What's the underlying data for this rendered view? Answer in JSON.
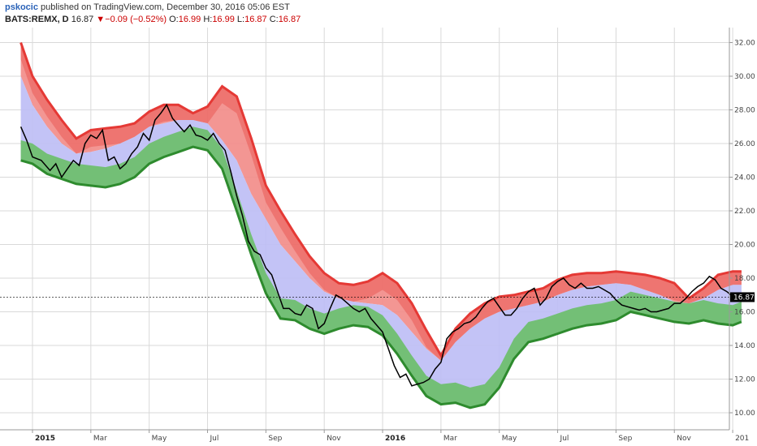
{
  "header": {
    "author": "pskocic",
    "published_text": "published on TradingView.com, December 30, 2016 05:06 EST",
    "symbol": "BATS:REMX, D",
    "last": "16.87",
    "change_arrow": "▼",
    "change": "−0.09 (−0.52%)",
    "o_label": "O:",
    "o": "16.99",
    "h_label": "H:",
    "h": "16.99",
    "l_label": "L:",
    "l": "16.87",
    "c_label": "C:",
    "c": "16.87"
  },
  "colors": {
    "price": "#000000",
    "upper_band": "#e53935",
    "upper_fill": "#f28b87",
    "middle_fill": "#bcbcf5",
    "lower_band": "#2e8b2e",
    "lower_fill": "#6fbf6f",
    "grid": "#d9d9d9",
    "last_label_bg": "#000000"
  },
  "chart_data": {
    "type": "line",
    "ylim": [
      9.4,
      33.2
    ],
    "y_ticks": [
      "10.00",
      "12.00",
      "14.00",
      "16.00",
      "18.00",
      "20.00",
      "22.00",
      "24.00",
      "26.00",
      "28.00",
      "30.00",
      "32.00"
    ],
    "x_ticks": [
      {
        "label": "2015",
        "t": 0,
        "bold": true
      },
      {
        "label": "Mar",
        "t": 2,
        "bold": false
      },
      {
        "label": "May",
        "t": 4,
        "bold": false
      },
      {
        "label": "Jul",
        "t": 6,
        "bold": false
      },
      {
        "label": "Sep",
        "t": 8,
        "bold": false
      },
      {
        "label": "Nov",
        "t": 10,
        "bold": false
      },
      {
        "label": "2016",
        "t": 12,
        "bold": true
      },
      {
        "label": "Mar",
        "t": 14,
        "bold": false
      },
      {
        "label": "May",
        "t": 16,
        "bold": false
      },
      {
        "label": "Jul",
        "t": 18,
        "bold": false
      },
      {
        "label": "Sep",
        "t": 20,
        "bold": false
      },
      {
        "label": "Nov",
        "t": 22,
        "bold": false
      },
      {
        "label": "201",
        "t": 24,
        "bold": false
      }
    ],
    "last_value": "16.87",
    "series": [
      {
        "role": "upper",
        "points": [
          [
            -0.4,
            32
          ],
          [
            0,
            30
          ],
          [
            0.5,
            28.6
          ],
          [
            1,
            27.4
          ],
          [
            1.5,
            26.3
          ],
          [
            2,
            26.8
          ],
          [
            2.5,
            26.9
          ],
          [
            3,
            27
          ],
          [
            3.5,
            27.2
          ],
          [
            4,
            27.9
          ],
          [
            4.5,
            28.3
          ],
          [
            5,
            28.3
          ],
          [
            5.5,
            27.8
          ],
          [
            6,
            28.2
          ],
          [
            6.5,
            29.4
          ],
          [
            7,
            28.8
          ],
          [
            7.5,
            26.3
          ],
          [
            8,
            23.5
          ],
          [
            8.5,
            22
          ],
          [
            9,
            20.6
          ],
          [
            9.5,
            19.3
          ],
          [
            10,
            18.3
          ],
          [
            10.5,
            17.7
          ],
          [
            11,
            17.6
          ],
          [
            11.5,
            17.8
          ],
          [
            12,
            18.3
          ],
          [
            12.5,
            17.7
          ],
          [
            13,
            16.5
          ],
          [
            13.5,
            14.9
          ],
          [
            14,
            13.4
          ],
          [
            14.5,
            15
          ],
          [
            15,
            15.9
          ],
          [
            15.5,
            16.5
          ],
          [
            16,
            16.9
          ],
          [
            16.5,
            17
          ],
          [
            17,
            17.2
          ],
          [
            17.5,
            17.4
          ],
          [
            18,
            17.9
          ],
          [
            18.5,
            18.2
          ],
          [
            19,
            18.3
          ],
          [
            19.5,
            18.3
          ],
          [
            20,
            18.4
          ],
          [
            20.5,
            18.3
          ],
          [
            21,
            18.2
          ],
          [
            21.5,
            18
          ],
          [
            22,
            17.7
          ],
          [
            22.5,
            16.8
          ],
          [
            23,
            17.4
          ],
          [
            23.5,
            18.2
          ],
          [
            24,
            18.4
          ],
          [
            24.3,
            18.4
          ]
        ]
      },
      {
        "role": "middle",
        "points": [
          [
            -0.4,
            30
          ],
          [
            0,
            28.3
          ],
          [
            0.5,
            27
          ],
          [
            1,
            26
          ],
          [
            1.5,
            25.4
          ],
          [
            2,
            25.5
          ],
          [
            2.5,
            25.7
          ],
          [
            3,
            26
          ],
          [
            3.5,
            26.4
          ],
          [
            4,
            27
          ],
          [
            4.5,
            27.2
          ],
          [
            5,
            27.4
          ],
          [
            5.5,
            27.4
          ],
          [
            6,
            27.2
          ],
          [
            6.5,
            26.2
          ],
          [
            7,
            25
          ],
          [
            7.5,
            23
          ],
          [
            8,
            21.5
          ],
          [
            8.5,
            20
          ],
          [
            9,
            19
          ],
          [
            9.5,
            18
          ],
          [
            10,
            17.2
          ],
          [
            10.5,
            16.8
          ],
          [
            11,
            16.6
          ],
          [
            11.5,
            16.5
          ],
          [
            12,
            16.4
          ],
          [
            12.5,
            15.8
          ],
          [
            13,
            14.8
          ],
          [
            13.5,
            13.8
          ],
          [
            14,
            13.1
          ],
          [
            14.5,
            14.2
          ],
          [
            15,
            15
          ],
          [
            15.5,
            15.6
          ],
          [
            16,
            16
          ],
          [
            16.5,
            16.2
          ],
          [
            17,
            16.4
          ],
          [
            17.5,
            16.6
          ],
          [
            18,
            17
          ],
          [
            18.5,
            17.3
          ],
          [
            19,
            17.5
          ],
          [
            19.5,
            17.6
          ],
          [
            20,
            17.7
          ],
          [
            20.5,
            17.6
          ],
          [
            21,
            17.3
          ],
          [
            21.5,
            17
          ],
          [
            22,
            16.6
          ],
          [
            22.5,
            16.5
          ],
          [
            23,
            16.8
          ],
          [
            23.5,
            17.3
          ],
          [
            24,
            17.6
          ],
          [
            24.3,
            17.6
          ]
        ]
      },
      {
        "role": "lower",
        "points": [
          [
            -0.4,
            25
          ],
          [
            0,
            24.8
          ],
          [
            0.5,
            24.2
          ],
          [
            1,
            23.9
          ],
          [
            1.5,
            23.6
          ],
          [
            2,
            23.5
          ],
          [
            2.5,
            23.4
          ],
          [
            3,
            23.6
          ],
          [
            3.5,
            24
          ],
          [
            4,
            24.8
          ],
          [
            4.5,
            25.2
          ],
          [
            5,
            25.5
          ],
          [
            5.5,
            25.8
          ],
          [
            6,
            25.6
          ],
          [
            6.5,
            24.5
          ],
          [
            7,
            22
          ],
          [
            7.5,
            19.4
          ],
          [
            8,
            17.1
          ],
          [
            8.5,
            15.6
          ],
          [
            9,
            15.5
          ],
          [
            9.5,
            15
          ],
          [
            10,
            14.7
          ],
          [
            10.5,
            15
          ],
          [
            11,
            15.2
          ],
          [
            11.5,
            15.1
          ],
          [
            12,
            14.6
          ],
          [
            12.5,
            13.5
          ],
          [
            13,
            12.2
          ],
          [
            13.5,
            11
          ],
          [
            14,
            10.5
          ],
          [
            14.5,
            10.6
          ],
          [
            15,
            10.3
          ],
          [
            15.5,
            10.5
          ],
          [
            16,
            11.5
          ],
          [
            16.5,
            13.2
          ],
          [
            17,
            14.2
          ],
          [
            17.5,
            14.4
          ],
          [
            18,
            14.7
          ],
          [
            18.5,
            15
          ],
          [
            19,
            15.2
          ],
          [
            19.5,
            15.3
          ],
          [
            20,
            15.5
          ],
          [
            20.5,
            16
          ],
          [
            21,
            15.8
          ],
          [
            21.5,
            15.6
          ],
          [
            22,
            15.4
          ],
          [
            22.5,
            15.3
          ],
          [
            23,
            15.5
          ],
          [
            23.5,
            15.3
          ],
          [
            24,
            15.2
          ],
          [
            24.3,
            15.4
          ]
        ]
      },
      {
        "role": "price",
        "points": [
          [
            -0.4,
            27
          ],
          [
            -0.2,
            26.2
          ],
          [
            0,
            25.2
          ],
          [
            0.3,
            25
          ],
          [
            0.6,
            24.4
          ],
          [
            0.8,
            24.8
          ],
          [
            1,
            24
          ],
          [
            1.2,
            24.5
          ],
          [
            1.4,
            25
          ],
          [
            1.6,
            24.7
          ],
          [
            1.8,
            26
          ],
          [
            2,
            26.5
          ],
          [
            2.2,
            26.3
          ],
          [
            2.4,
            26.8
          ],
          [
            2.6,
            25
          ],
          [
            2.8,
            25.2
          ],
          [
            3,
            24.5
          ],
          [
            3.2,
            24.8
          ],
          [
            3.4,
            25.4
          ],
          [
            3.6,
            25.8
          ],
          [
            3.8,
            26.6
          ],
          [
            4,
            26.2
          ],
          [
            4.2,
            27.4
          ],
          [
            4.4,
            27.8
          ],
          [
            4.6,
            28.3
          ],
          [
            4.8,
            27.5
          ],
          [
            5,
            27.1
          ],
          [
            5.2,
            26.7
          ],
          [
            5.4,
            27.1
          ],
          [
            5.6,
            26.5
          ],
          [
            5.8,
            26.4
          ],
          [
            6,
            26.2
          ],
          [
            6.2,
            26.6
          ],
          [
            6.4,
            26
          ],
          [
            6.6,
            25.6
          ],
          [
            6.8,
            24.3
          ],
          [
            7,
            22.9
          ],
          [
            7.2,
            21.7
          ],
          [
            7.4,
            20.2
          ],
          [
            7.6,
            19.6
          ],
          [
            7.8,
            19.4
          ],
          [
            8,
            18.6
          ],
          [
            8.2,
            18.2
          ],
          [
            8.4,
            17.2
          ],
          [
            8.6,
            16.2
          ],
          [
            8.8,
            16.2
          ],
          [
            9,
            15.9
          ],
          [
            9.2,
            15.8
          ],
          [
            9.4,
            16.4
          ],
          [
            9.6,
            16.2
          ],
          [
            9.8,
            15
          ],
          [
            10,
            15.3
          ],
          [
            10.2,
            16.2
          ],
          [
            10.4,
            17
          ],
          [
            10.6,
            16.8
          ],
          [
            10.8,
            16.5
          ],
          [
            11,
            16.2
          ],
          [
            11.2,
            16
          ],
          [
            11.4,
            16.2
          ],
          [
            11.6,
            15.6
          ],
          [
            11.8,
            15.2
          ],
          [
            12,
            14.8
          ],
          [
            12.2,
            13.8
          ],
          [
            12.4,
            12.8
          ],
          [
            12.6,
            12.1
          ],
          [
            12.8,
            12.3
          ],
          [
            13,
            11.6
          ],
          [
            13.2,
            11.7
          ],
          [
            13.4,
            11.8
          ],
          [
            13.6,
            12
          ],
          [
            13.8,
            12.6
          ],
          [
            14,
            13
          ],
          [
            14.2,
            14.4
          ],
          [
            14.4,
            14.8
          ],
          [
            14.6,
            15
          ],
          [
            14.8,
            15.3
          ],
          [
            15,
            15.4
          ],
          [
            15.2,
            15.7
          ],
          [
            15.4,
            16.2
          ],
          [
            15.6,
            16.6
          ],
          [
            15.8,
            16.8
          ],
          [
            16,
            16.3
          ],
          [
            16.2,
            15.8
          ],
          [
            16.4,
            15.8
          ],
          [
            16.6,
            16.2
          ],
          [
            16.8,
            16.8
          ],
          [
            17,
            17.2
          ],
          [
            17.2,
            17.4
          ],
          [
            17.4,
            16.4
          ],
          [
            17.6,
            16.8
          ],
          [
            17.8,
            17.5
          ],
          [
            18,
            17.8
          ],
          [
            18.2,
            18
          ],
          [
            18.4,
            17.6
          ],
          [
            18.6,
            17.4
          ],
          [
            18.8,
            17.7
          ],
          [
            19,
            17.4
          ],
          [
            19.2,
            17.4
          ],
          [
            19.4,
            17.5
          ],
          [
            19.6,
            17.3
          ],
          [
            19.8,
            17.1
          ],
          [
            20,
            16.7
          ],
          [
            20.2,
            16.4
          ],
          [
            20.4,
            16.3
          ],
          [
            20.6,
            16.2
          ],
          [
            20.8,
            16.1
          ],
          [
            21,
            16.2
          ],
          [
            21.2,
            16
          ],
          [
            21.4,
            16
          ],
          [
            21.6,
            16.1
          ],
          [
            21.8,
            16.2
          ],
          [
            22,
            16.5
          ],
          [
            22.2,
            16.5
          ],
          [
            22.4,
            16.8
          ],
          [
            22.6,
            17.2
          ],
          [
            22.8,
            17.5
          ],
          [
            23,
            17.7
          ],
          [
            23.2,
            18.1
          ],
          [
            23.4,
            17.9
          ],
          [
            23.6,
            17.4
          ],
          [
            23.8,
            17.2
          ],
          [
            24,
            16.9
          ],
          [
            24.15,
            16.87
          ]
        ]
      }
    ]
  }
}
